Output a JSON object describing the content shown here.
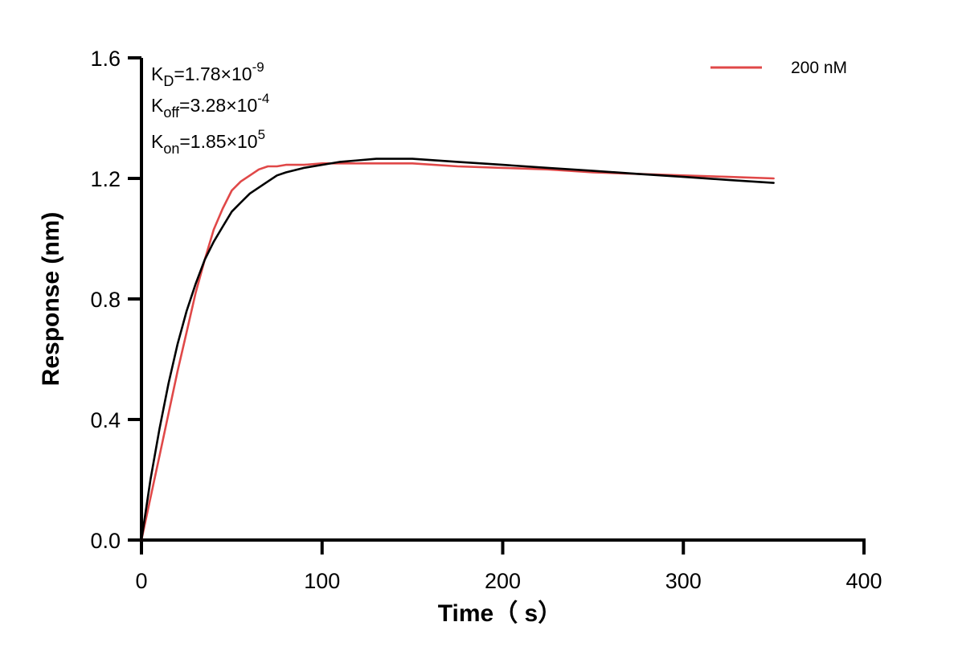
{
  "chart_data": {
    "type": "line",
    "title": "",
    "xlabel": "Time（ s）",
    "ylabel": "Response (nm)",
    "xlim": [
      0,
      400
    ],
    "ylim": [
      0,
      1.6
    ],
    "xticks": [
      "0",
      "100",
      "200",
      "300",
      "400"
    ],
    "yticks": [
      "0.0",
      "0.4",
      "0.8",
      "1.2",
      "1.6"
    ],
    "grid": false,
    "legend_position": "top-right",
    "annotations": {
      "kd": {
        "base": "K",
        "sub": "D",
        "value": "=1.78×10",
        "exp": "-9"
      },
      "koff": {
        "base": "K",
        "sub": "off",
        "value": "=3.28×10",
        "exp": "-4"
      },
      "kon": {
        "base": "K",
        "sub": "on",
        "value": "=1.85×10",
        "exp": "5"
      }
    },
    "series": [
      {
        "name": "200 nM",
        "color": "#e04848",
        "x": [
          0,
          5,
          10,
          15,
          20,
          25,
          30,
          35,
          40,
          45,
          50,
          55,
          60,
          65,
          70,
          75,
          80,
          90,
          100,
          110,
          120,
          130,
          140,
          150,
          175,
          200,
          225,
          250,
          275,
          300,
          325,
          350
        ],
        "y": [
          0.0,
          0.14,
          0.28,
          0.42,
          0.56,
          0.69,
          0.82,
          0.93,
          1.03,
          1.1,
          1.16,
          1.19,
          1.21,
          1.23,
          1.24,
          1.24,
          1.245,
          1.245,
          1.25,
          1.25,
          1.25,
          1.25,
          1.25,
          1.25,
          1.24,
          1.235,
          1.23,
          1.22,
          1.215,
          1.21,
          1.205,
          1.2
        ]
      },
      {
        "color": "#000000",
        "x": [
          0,
          5,
          10,
          15,
          20,
          25,
          30,
          35,
          40,
          45,
          50,
          55,
          60,
          65,
          70,
          75,
          80,
          90,
          100,
          110,
          120,
          130,
          140,
          150,
          175,
          200,
          225,
          250,
          275,
          300,
          325,
          350
        ],
        "y": [
          0.0,
          0.2,
          0.37,
          0.52,
          0.65,
          0.76,
          0.85,
          0.93,
          0.99,
          1.04,
          1.09,
          1.12,
          1.15,
          1.17,
          1.19,
          1.21,
          1.22,
          1.235,
          1.245,
          1.255,
          1.26,
          1.265,
          1.265,
          1.265,
          1.255,
          1.245,
          1.235,
          1.225,
          1.215,
          1.205,
          1.195,
          1.185
        ]
      }
    ]
  }
}
